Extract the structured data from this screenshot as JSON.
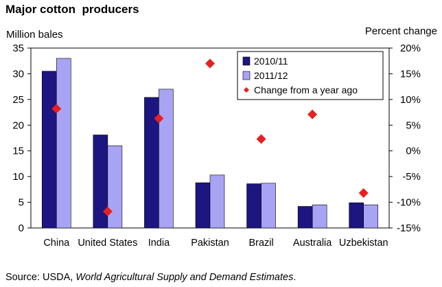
{
  "title": "Major cotton  producers",
  "source": {
    "prefix": "Source: USDA, ",
    "italic": "World Agricultural Supply and Demand Estimates",
    "suffix": "."
  },
  "colors": {
    "series_2010": "#1d1580",
    "series_2011": "#a9a3f4",
    "change": "#e62020"
  },
  "chart_data": {
    "type": "bar",
    "categories": [
      "China",
      "United States",
      "India",
      "Pakistan",
      "Brazil",
      "Australia",
      "Uzbekistan"
    ],
    "series": [
      {
        "name": "2010/11",
        "values": [
          30.5,
          18.1,
          25.4,
          8.8,
          8.6,
          4.2,
          4.9
        ]
      },
      {
        "name": "2011/12",
        "values": [
          33.0,
          16.0,
          27.0,
          10.3,
          8.7,
          4.5,
          4.5
        ]
      }
    ],
    "secondary_series": {
      "name": "Change from a year ago",
      "type": "scatter",
      "values": [
        8.2,
        -11.8,
        6.3,
        17.0,
        2.3,
        7.1,
        -8.2
      ]
    },
    "ylabel": "Million bales",
    "y2label": "Percent change",
    "ylim": [
      0,
      35
    ],
    "y_ticks": [
      0,
      5,
      10,
      15,
      20,
      25,
      30,
      35
    ],
    "y2lim": [
      -15,
      20
    ],
    "y2_ticks": [
      "-15%",
      "-10%",
      "-5%",
      "0%",
      "5%",
      "10%",
      "15%",
      "20%"
    ],
    "y2_tick_values": [
      -15,
      -10,
      -5,
      0,
      5,
      10,
      15,
      20
    ],
    "legend": {
      "position": "top-right",
      "entries": [
        "2010/11",
        "2011/12",
        "Change from a year ago"
      ]
    },
    "grid": false
  }
}
